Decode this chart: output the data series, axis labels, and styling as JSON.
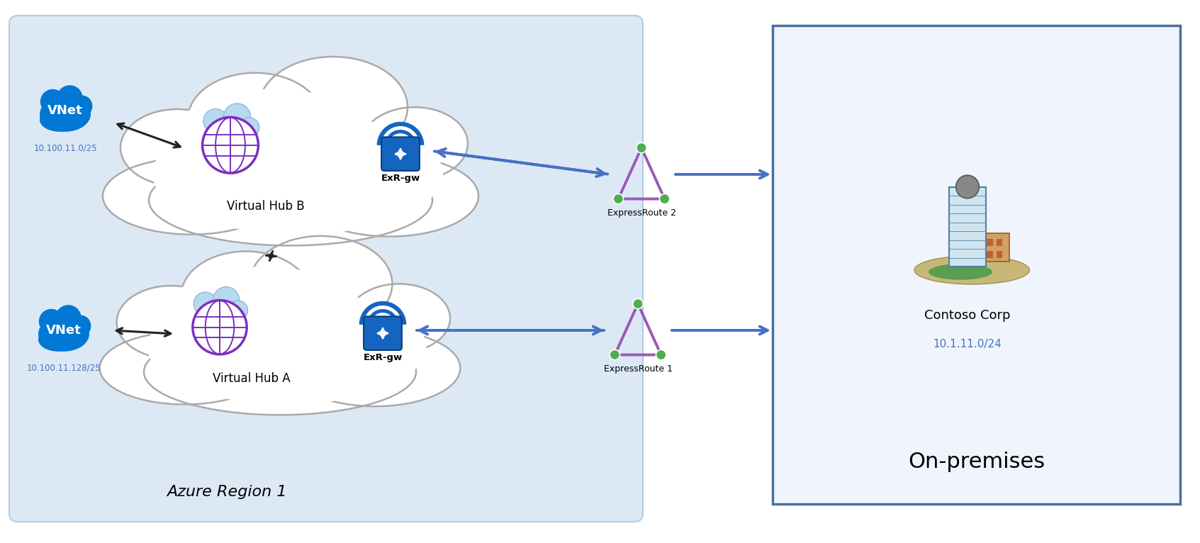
{
  "fig_bg": "#ffffff",
  "azure_bg": "#dce9f5",
  "azure_border": "#b0cce0",
  "onprem_bg": "#f0f4fc",
  "onprem_border": "#4a6fa0",
  "cloud_fill": "#ffffff",
  "cloud_edge": "#aaaaaa",
  "vnet_color": "#0078d4",
  "vnet_text": "white",
  "lock_body_color": "#1565c0",
  "lock_shackle_color": "#1565c0",
  "arrow_blue": "#4472c4",
  "arrow_black": "#222222",
  "triangle_color": "#9b59b6",
  "triangle_fill": "none",
  "dot_color": "#4caf50",
  "dot_edge": "#ffffff",
  "label_blue": "#4472c4",
  "label_black": "#111111",
  "hub_cloud_color": "#b8d8f0",
  "hub_cloud_edge": "#80b0d8",
  "hub_globe_bg": "#ffffff",
  "hub_globe_edge": "#7b2fbe",
  "hub_globe_line": "#7b2fbe",
  "azure_region_label": "Azure Region 1",
  "onprem_label": "On-premises",
  "vnet_b_label": "VNet",
  "vnet_b_ip": "10.100.11.0/25",
  "vnet_a_label": "VNet",
  "vnet_a_ip": "10.100.11.128/25",
  "hub_b_label": "Virtual Hub B",
  "hub_a_label": "Virtual Hub A",
  "exr_label": "ExR-gw",
  "er1_label": "ExpressRoute 1",
  "er2_label": "ExpressRoute 2",
  "contoso_label": "Contoso Corp",
  "contoso_ip": "10.1.11.0/24"
}
